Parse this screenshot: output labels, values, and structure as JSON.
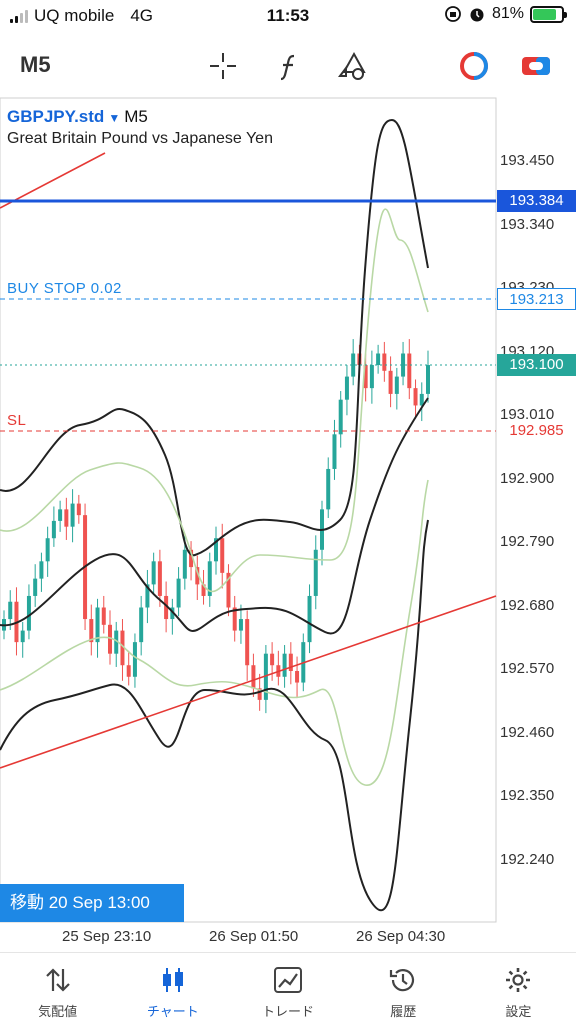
{
  "status_bar": {
    "carrier": "UQ mobile",
    "network": "4G",
    "time": "11:53",
    "battery_percent": "81%",
    "battery_level": 0.81
  },
  "toolbar": {
    "period": "M5",
    "icons": [
      "crosshair-icon",
      "function-icon",
      "shapes-icon",
      "trade-toggle-icon",
      "one-click-trading-icon"
    ]
  },
  "chart": {
    "symbol": "GBPJPY.std",
    "timeframe": "M5",
    "description": "Great Britain Pound vs Japanese Yen",
    "order_label": "BUY STOP 0.02",
    "sl_label": "SL",
    "price_tags": {
      "ask_line": "193.384",
      "buy_stop": "193.213",
      "current": "193.100",
      "stop_loss": "192.985"
    },
    "axis_prices": [
      "193.450",
      "193.340",
      "193.230",
      "193.120",
      "193.010",
      "192.900",
      "192.790",
      "192.680",
      "192.570",
      "192.460",
      "192.350",
      "192.240"
    ],
    "time_labels": [
      "25 Sep 23:10",
      "26 Sep 01:50",
      "26 Sep 04:30"
    ],
    "scroll_badge": "移動 20 Sep 13:00",
    "colors": {
      "ask_line": "#1a56db",
      "buy_stop": "#1e88e5",
      "current": "#26a69a",
      "stop_loss": "#e53935",
      "bull": "#26a69a",
      "bear": "#ef5350",
      "trendline": "#e53935"
    }
  },
  "bottom_nav": [
    {
      "label": "気配値",
      "icon": "quotes-arrows-icon"
    },
    {
      "label": "チャート",
      "icon": "candlestick-chart-icon",
      "active": true
    },
    {
      "label": "トレード",
      "icon": "trade-chart-icon"
    },
    {
      "label": "履歴",
      "icon": "history-clock-icon"
    },
    {
      "label": "設定",
      "icon": "settings-gear-icon"
    }
  ]
}
